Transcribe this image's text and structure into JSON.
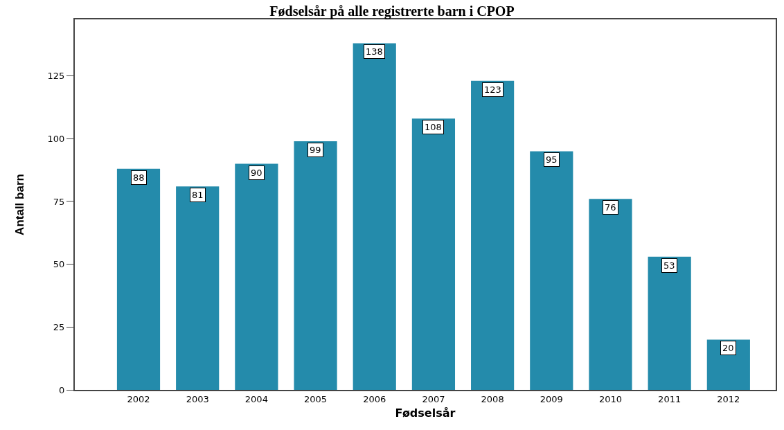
{
  "chart_data": {
    "type": "bar",
    "title": "Fødselsår på alle registrerte barn i CPOP",
    "xlabel": "Fødselsår",
    "ylabel": "Antall barn",
    "categories": [
      "2002",
      "2003",
      "2004",
      "2005",
      "2006",
      "2007",
      "2008",
      "2009",
      "2010",
      "2011",
      "2012"
    ],
    "values": [
      88,
      81,
      90,
      99,
      138,
      108,
      123,
      95,
      76,
      53,
      20
    ],
    "color": "#248bab",
    "ylim": [
      0,
      147.5
    ],
    "yticks": [
      0,
      25,
      50,
      75,
      100,
      125
    ],
    "grid": false,
    "legend": false,
    "data_labels": true
  }
}
